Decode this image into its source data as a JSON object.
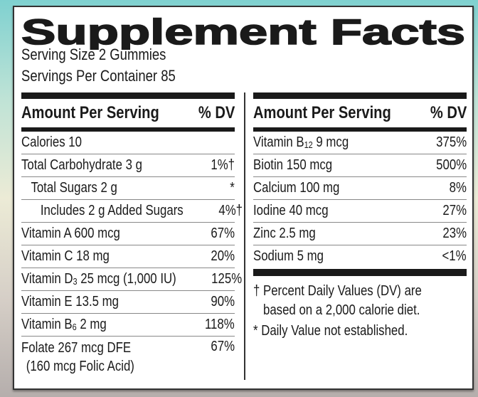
{
  "title": "Supplement Facts",
  "serving_size": "Serving Size 2 Gummies",
  "servings_per_container": "Servings Per Container 85",
  "header": {
    "amount": "Amount Per Serving",
    "dv": "% DV"
  },
  "left_rows": [
    {
      "name": "Calories 10",
      "dv": ""
    },
    {
      "name": "Total Carbohydrate 3 g",
      "dv": "1%†"
    },
    {
      "name": "Total Sugars 2 g",
      "dv": "*"
    },
    {
      "name": "Includes 2 g Added Sugars",
      "dv": "4%†"
    },
    {
      "name": "Vitamin A 600 mcg",
      "dv": "67%"
    },
    {
      "name": "Vitamin C 18 mg",
      "dv": "20%"
    },
    {
      "name_pre": "Vitamin D",
      "name_sub": "3",
      "name_post": " 25 mcg (1,000 IU)",
      "dv": "125%"
    },
    {
      "name": "Vitamin E 13.5 mg",
      "dv": "90%"
    },
    {
      "name_pre": "Vitamin B",
      "name_sub": "6",
      "name_post": " 2 mg",
      "dv": "118%"
    },
    {
      "name": "Folate 267 mcg DFE",
      "name2": "(160 mcg Folic Acid)",
      "dv": "67%"
    }
  ],
  "right_rows": [
    {
      "name_pre": "Vitamin B",
      "name_sub": "12",
      "name_post": " 9 mcg",
      "dv": "375%"
    },
    {
      "name": "Biotin 150 mcg",
      "dv": "500%"
    },
    {
      "name": "Calcium 100 mg",
      "dv": "8%"
    },
    {
      "name": "Iodine 40 mcg",
      "dv": "27%"
    },
    {
      "name": "Zinc 2.5 mg",
      "dv": "23%"
    },
    {
      "name": "Sodium 5 mg",
      "dv": "<1%"
    }
  ],
  "footnotes": {
    "dagger_line1": "† Percent Daily Values (DV) are",
    "dagger_line2": "based on a 2,000 calorie diet.",
    "asterisk": "* Daily Value not established."
  }
}
